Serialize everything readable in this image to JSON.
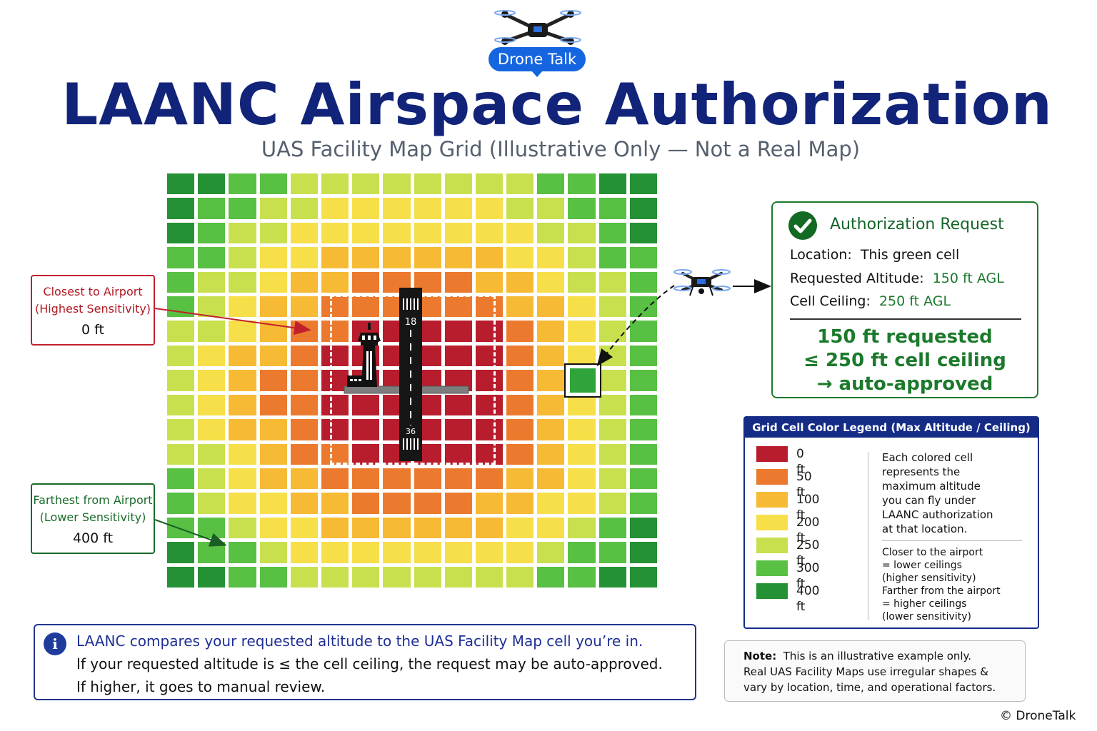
{
  "brand": {
    "name": "Drone Talk",
    "copyright": "© DroneTalk"
  },
  "header": {
    "title": "LAANC Airspace Authorization",
    "subtitle": "UAS Facility Map Grid (Illustrative Only — Not a Real Map)"
  },
  "colors": {
    "0": "#b81d2e",
    "50": "#ec7a2e",
    "100": "#f7ba35",
    "200": "#f7df4a",
    "250": "#c9e04e",
    "300": "#58c043",
    "400": "#249135",
    "accent_navy": "#12237a",
    "accent_green": "#1b7a2b"
  },
  "grid": {
    "rows": [
      [
        400,
        400,
        300,
        300,
        250,
        250,
        250,
        250,
        250,
        250,
        250,
        250,
        300,
        300,
        400,
        400
      ],
      [
        400,
        300,
        300,
        250,
        250,
        200,
        200,
        200,
        200,
        200,
        200,
        250,
        250,
        300,
        300,
        400
      ],
      [
        400,
        300,
        250,
        250,
        200,
        200,
        200,
        200,
        200,
        200,
        200,
        200,
        250,
        250,
        300,
        400
      ],
      [
        300,
        300,
        250,
        200,
        200,
        100,
        100,
        100,
        100,
        100,
        100,
        200,
        200,
        250,
        300,
        300
      ],
      [
        300,
        250,
        250,
        200,
        100,
        100,
        50,
        50,
        50,
        50,
        100,
        100,
        200,
        250,
        250,
        300
      ],
      [
        300,
        250,
        200,
        100,
        100,
        50,
        50,
        50,
        50,
        50,
        50,
        100,
        100,
        200,
        250,
        300
      ],
      [
        250,
        250,
        200,
        100,
        50,
        50,
        0,
        0,
        0,
        0,
        0,
        50,
        100,
        200,
        250,
        300
      ],
      [
        250,
        200,
        100,
        100,
        50,
        0,
        0,
        0,
        0,
        0,
        0,
        50,
        100,
        200,
        250,
        300
      ],
      [
        250,
        200,
        100,
        50,
        50,
        0,
        0,
        0,
        0,
        0,
        0,
        50,
        100,
        250,
        250,
        300
      ],
      [
        250,
        200,
        100,
        50,
        50,
        0,
        0,
        0,
        0,
        0,
        0,
        50,
        100,
        200,
        250,
        300
      ],
      [
        250,
        200,
        100,
        100,
        50,
        0,
        0,
        0,
        0,
        0,
        0,
        50,
        100,
        200,
        250,
        300
      ],
      [
        250,
        250,
        200,
        100,
        50,
        50,
        0,
        0,
        0,
        0,
        0,
        50,
        100,
        200,
        250,
        300
      ],
      [
        300,
        250,
        200,
        100,
        100,
        50,
        50,
        50,
        50,
        50,
        50,
        100,
        100,
        200,
        250,
        300
      ],
      [
        300,
        250,
        200,
        200,
        100,
        100,
        50,
        50,
        50,
        50,
        100,
        100,
        200,
        200,
        250,
        300
      ],
      [
        300,
        300,
        250,
        200,
        200,
        100,
        100,
        100,
        100,
        100,
        100,
        200,
        200,
        250,
        300,
        400
      ],
      [
        400,
        300,
        300,
        250,
        200,
        200,
        200,
        200,
        200,
        200,
        200,
        200,
        250,
        300,
        300,
        400
      ],
      [
        400,
        400,
        300,
        300,
        250,
        250,
        250,
        250,
        250,
        250,
        250,
        250,
        300,
        300,
        400,
        400
      ]
    ],
    "runway": {
      "top_number": "18",
      "bottom_number": "36"
    }
  },
  "callouts": {
    "closest": {
      "line1": "Closest to Airport",
      "line2": "(Highest Sensitivity)",
      "value": "0 ft"
    },
    "farthest": {
      "line1": "Farthest from Airport",
      "line2": "(Lower Sensitivity)",
      "value": "400 ft"
    }
  },
  "authorization": {
    "title": "Authorization Request",
    "location_label": "Location:",
    "location_value": "This green cell",
    "altitude_label": "Requested Altitude:",
    "altitude_value": "150 ft AGL",
    "ceiling_label": "Cell Ceiling:",
    "ceiling_value": "250 ft AGL",
    "result_line1": "150 ft requested",
    "result_line2": "≤ 250 ft cell ceiling",
    "result_line3": "→ auto-approved"
  },
  "legend": {
    "title": "Grid Cell Color Legend (Max Altitude / Ceiling)",
    "items": [
      {
        "label": "0 ft",
        "color": "#b81d2e"
      },
      {
        "label": "50 ft",
        "color": "#ec7a2e"
      },
      {
        "label": "100 ft",
        "color": "#f7ba35"
      },
      {
        "label": "200 ft",
        "color": "#f7df4a"
      },
      {
        "label": "250 ft",
        "color": "#c9e04e"
      },
      {
        "label": "300 ft",
        "color": "#58c043"
      },
      {
        "label": "400 ft",
        "color": "#249135"
      }
    ],
    "desc_lines": [
      "Each colored cell",
      "represents the",
      "maximum altitude",
      "you can fly under",
      "LAANC authorization",
      "at that location."
    ],
    "desc2_lines": [
      "Closer to the airport",
      "= lower ceilings",
      "(higher sensitivity)",
      "Farther from the airport",
      "= higher ceilings",
      "(lower sensitivity)"
    ]
  },
  "info": {
    "icon": "i",
    "line1": "LAANC compares your requested altitude to the UAS Facility Map cell you’re in.",
    "line2": "If your requested altitude is ≤ the cell ceiling, the request may be auto-approved.",
    "line3": "If higher, it goes to manual review."
  },
  "note": {
    "label": "Note:",
    "line1": "This is an illustrative example only.",
    "line2": "Real UAS Facility Maps use irregular shapes &",
    "line3": "vary by location, time, and operational factors."
  }
}
